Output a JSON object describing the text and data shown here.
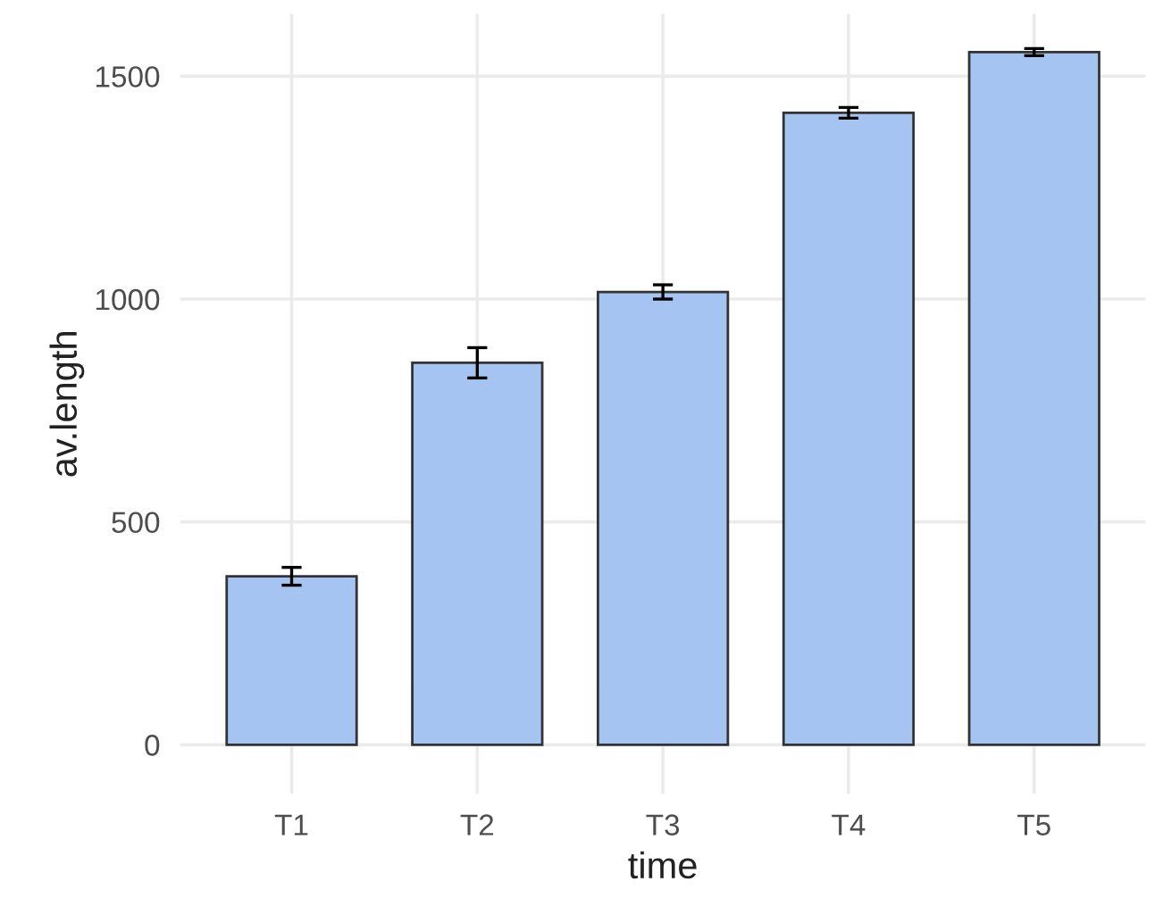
{
  "chart_data": {
    "type": "bar",
    "xlabel": "time",
    "ylabel": "av.length",
    "categories": [
      "T1",
      "T2",
      "T3",
      "T4",
      "T5"
    ],
    "values": [
      378,
      857,
      1016,
      1418,
      1554
    ],
    "errors": [
      20,
      34,
      16,
      12,
      8
    ],
    "color": "#a6c4f2",
    "ylim": [
      -110,
      1640
    ],
    "yticks": [
      0,
      500,
      1000,
      1500
    ],
    "grid": true
  }
}
